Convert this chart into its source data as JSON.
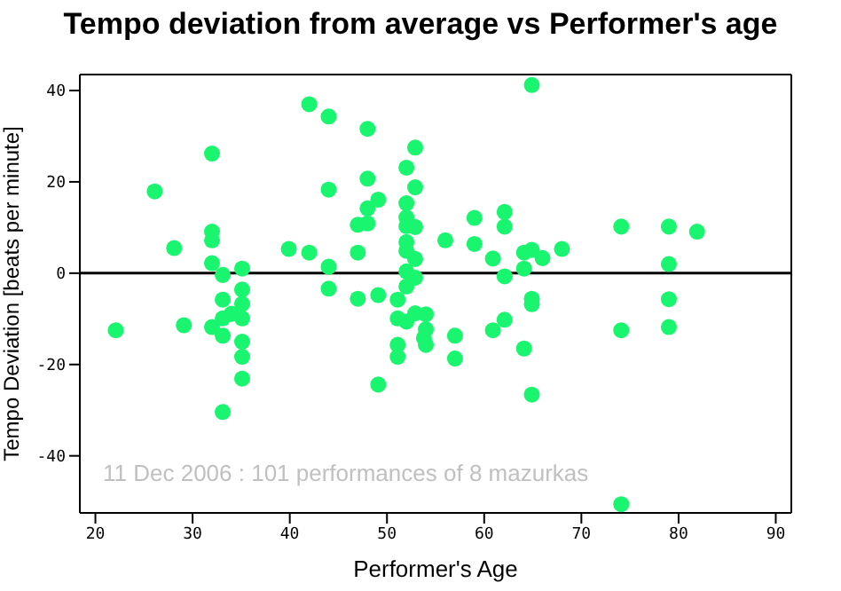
{
  "chart_data": {
    "type": "scatter",
    "title": "Tempo deviation from average vs Performer's age",
    "xlabel": "Performer's Age",
    "ylabel": "Tempo Deviation [beats per minute]",
    "annotations": [
      "11 Dec 2006 : 101 performances of 8 mazurkas"
    ],
    "xlim": [
      18.4,
      91.6
    ],
    "xticks": [
      20,
      30,
      40,
      50,
      60,
      70,
      80,
      90
    ],
    "ylim": [
      -52.5,
      43.5
    ],
    "yticks": [
      -40,
      -20,
      0,
      20,
      40
    ],
    "grid": false,
    "marker": "circle",
    "ref_lines": [
      {
        "axis": "y",
        "value": 0,
        "color": "#000000"
      }
    ],
    "series": [
      {
        "color": "#19f56e",
        "x": [
          22.1,
          26.1,
          28.1,
          29.1,
          32,
          32,
          32,
          32,
          32,
          33.1,
          33.1,
          33.1,
          33.1,
          33.1,
          34,
          35.1,
          35.1,
          35.1,
          35.1,
          35.1,
          35.1,
          35.1,
          39.9,
          42,
          42,
          44,
          44,
          44,
          44,
          47,
          47,
          47,
          48,
          48,
          48,
          48,
          49.1,
          49.1,
          49.1,
          51.1,
          51.1,
          51.1,
          51.1,
          52,
          52,
          52,
          52,
          52,
          52,
          52,
          52,
          52,
          52.9,
          52.9,
          52.9,
          52.9,
          52.9,
          52.9,
          53.8,
          54,
          54,
          54,
          56,
          57,
          57,
          59,
          59,
          60.9,
          60.9,
          62.1,
          62.1,
          62.1,
          62.1,
          64.1,
          64.1,
          64.1,
          64.9,
          64.9,
          64.9,
          64.9,
          64.9,
          66,
          68,
          74.1,
          74.1,
          74.1,
          79,
          79,
          79,
          79,
          81.9
        ],
        "values": [
          -12.5,
          17.9,
          5.5,
          -11.4,
          26.2,
          9.1,
          7.2,
          2.2,
          -11.8,
          -0.4,
          -5.8,
          -9.9,
          -13.7,
          -30.4,
          -8.9,
          1,
          -3.6,
          -6.7,
          -9.9,
          -15,
          -18.3,
          -23.1,
          5.3,
          37,
          4.5,
          34.3,
          18.3,
          1.4,
          -3.4,
          10.6,
          4.5,
          -5.6,
          31.6,
          20.7,
          14.2,
          10.9,
          16.1,
          -4.8,
          -24.4,
          -5.8,
          -9.9,
          -15.7,
          -18.3,
          23.1,
          15.3,
          12.2,
          10.3,
          6.8,
          4.9,
          0.4,
          -2.9,
          -10.6,
          27.5,
          18.8,
          10.1,
          3.1,
          -1,
          -8.8,
          -14.2,
          -9,
          -12.3,
          -15.7,
          7.2,
          -13.7,
          -18.7,
          12.1,
          6.4,
          3.2,
          -12.5,
          13.4,
          10.2,
          -0.7,
          -10.2,
          4.5,
          1,
          -16.5,
          41.2,
          5.1,
          -5.6,
          -6.8,
          -26.6,
          3.3,
          5.3,
          10.2,
          -12.5,
          -50.6,
          10.2,
          2,
          -5.7,
          -11.8,
          9.1
        ]
      }
    ]
  }
}
